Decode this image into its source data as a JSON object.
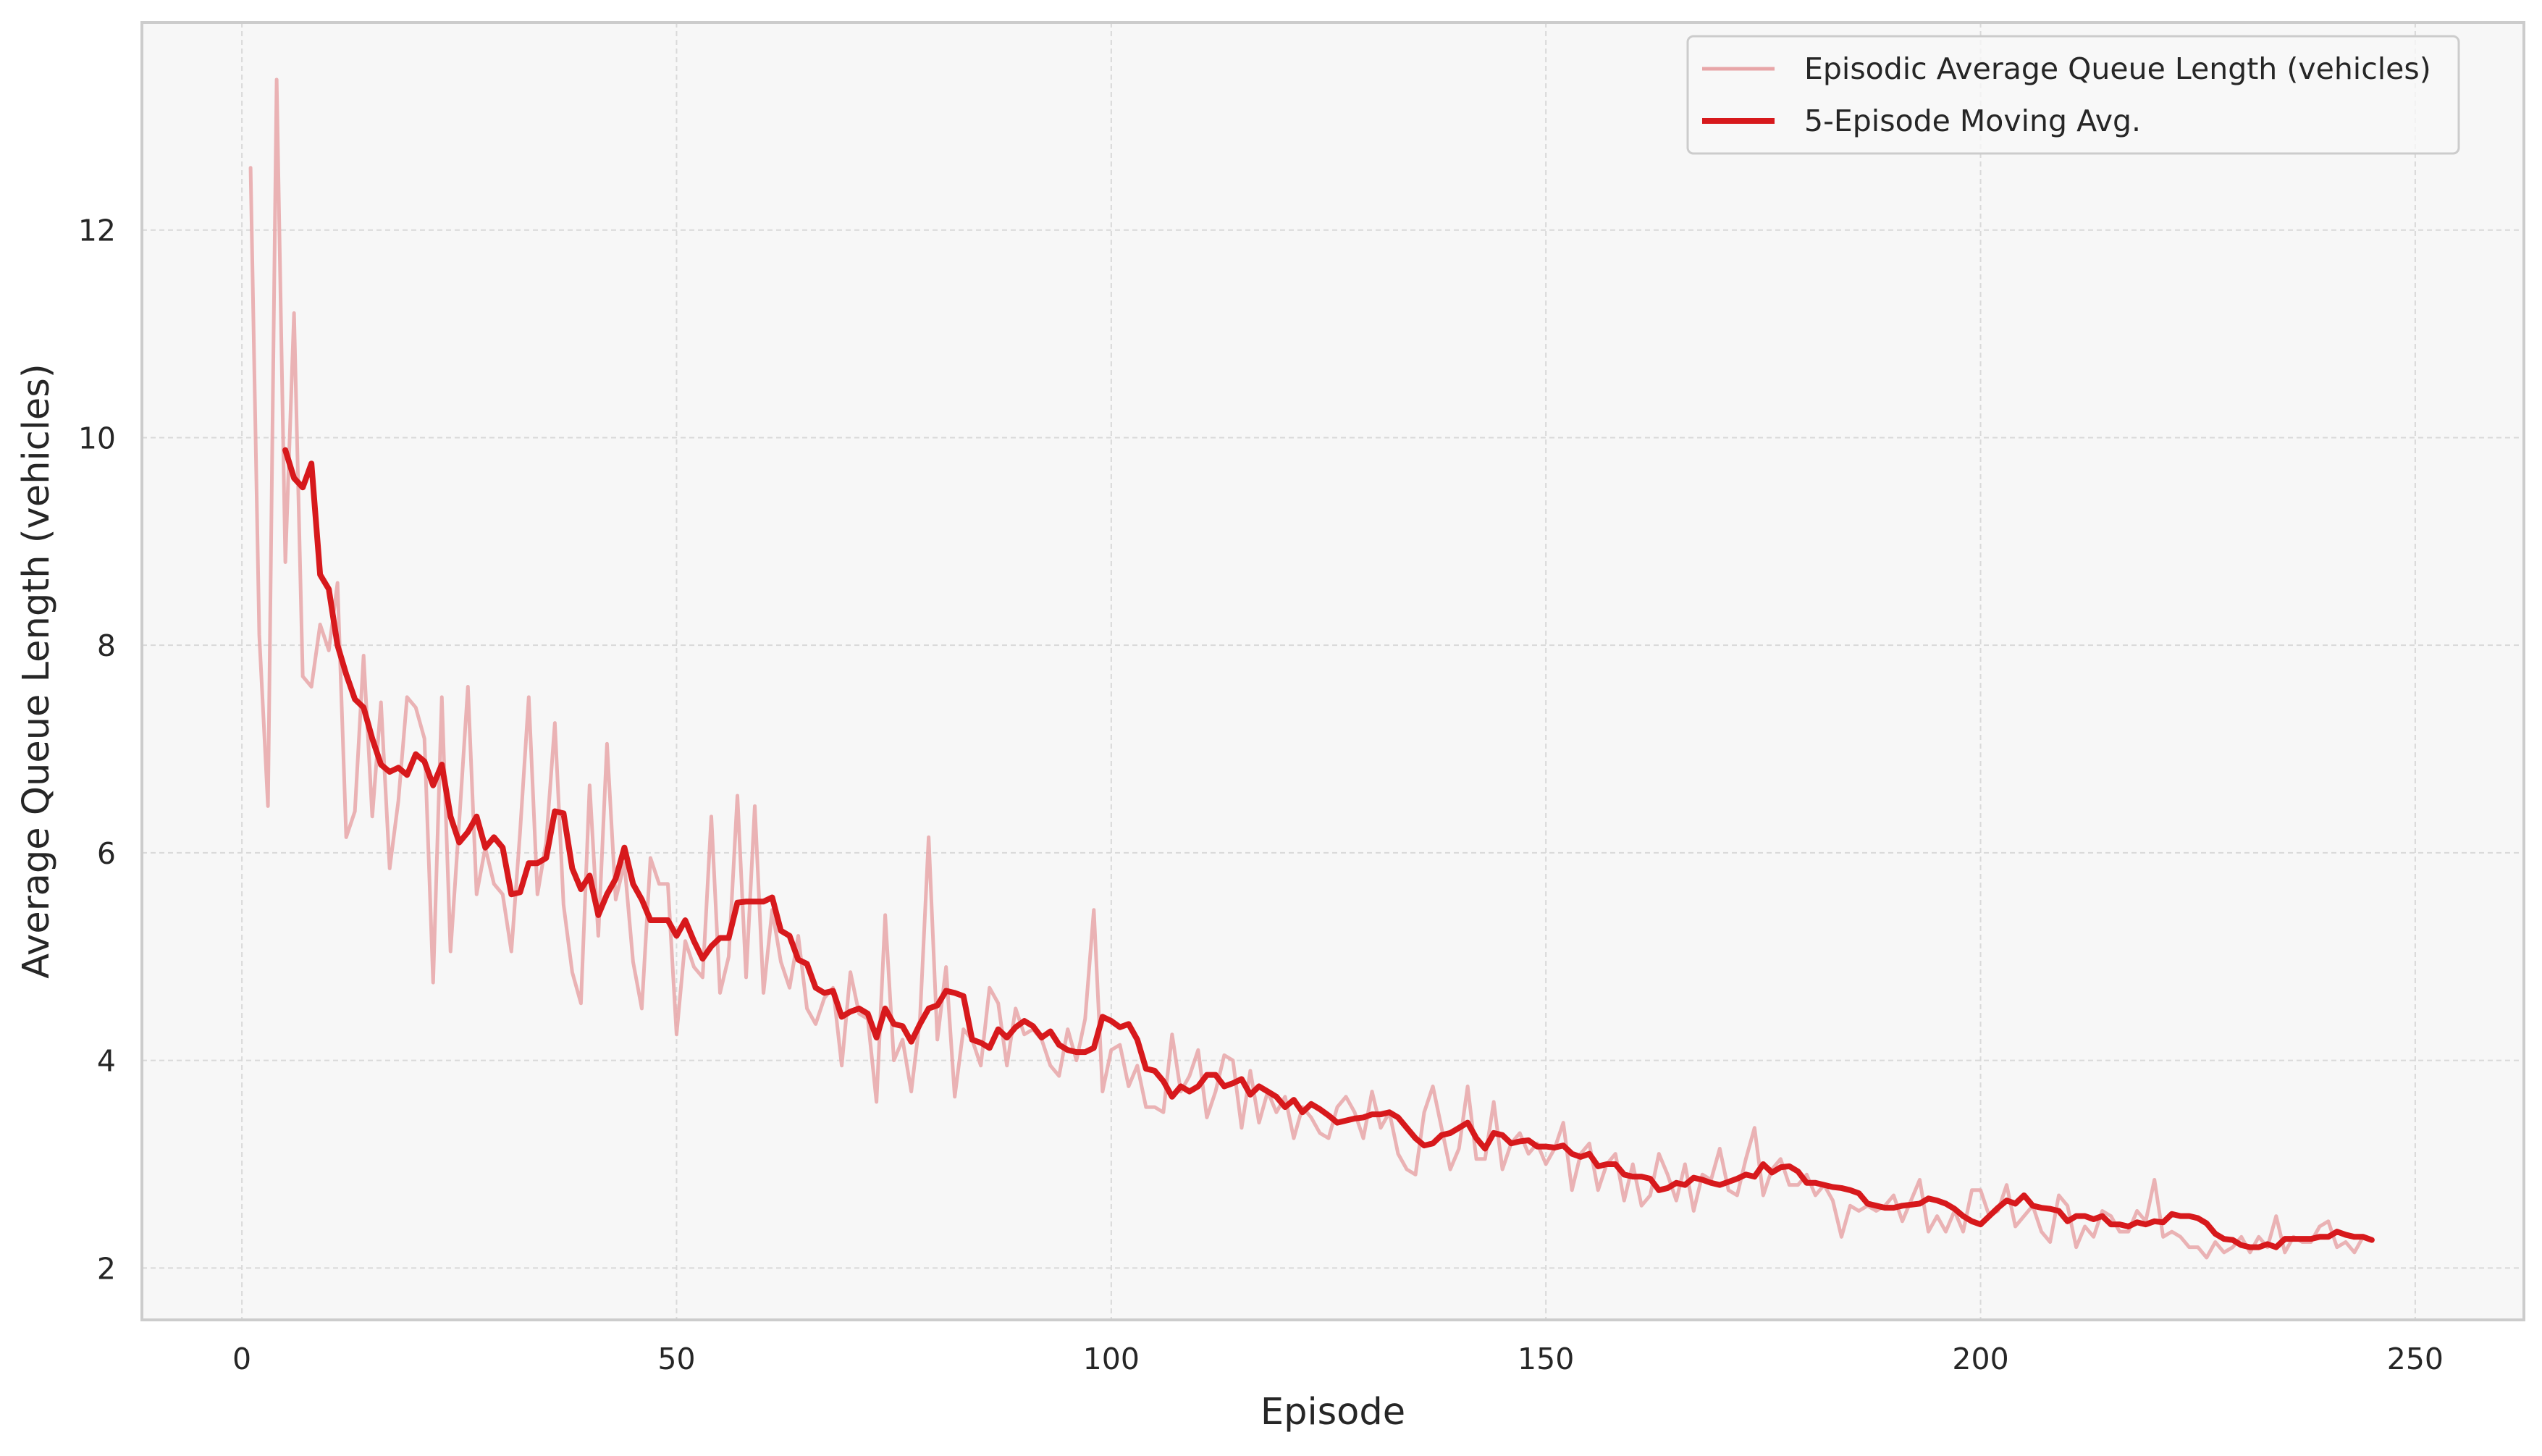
{
  "colors": {
    "background": "#ffffff",
    "plot_background": "#f7f7f7",
    "grid": "#d9d9d9",
    "spine": "#cccccc",
    "raw_line": "#e8a6a8",
    "moving_avg_line": "#d7191c"
  },
  "chart_data": {
    "type": "line",
    "title": "",
    "xlabel": "Episode",
    "ylabel": "Average Queue Length (vehicles)",
    "xlim": [
      -11.5,
      262.5
    ],
    "ylim": [
      1.5,
      14.0
    ],
    "xticks": [
      0,
      50,
      100,
      150,
      200,
      250
    ],
    "yticks": [
      2,
      4,
      6,
      8,
      10,
      12
    ],
    "grid": true,
    "legend": "upper-right",
    "series": [
      {
        "name": "Episodic Average Queue Length (vehicles)",
        "x_start": 1,
        "values": [
          12.6,
          8.1,
          6.45,
          13.45,
          8.8,
          11.2,
          7.7,
          7.6,
          8.2,
          7.95,
          8.6,
          6.15,
          6.4,
          7.9,
          6.35,
          7.45,
          5.85,
          6.5,
          7.5,
          7.4,
          7.1,
          4.75,
          7.5,
          5.05,
          6.3,
          7.6,
          5.6,
          6.05,
          5.7,
          5.6,
          5.05,
          6.2,
          7.5,
          5.6,
          6.1,
          7.25,
          5.5,
          4.85,
          4.55,
          6.65,
          5.2,
          7.05,
          5.55,
          5.9,
          4.95,
          4.5,
          5.95,
          5.7,
          5.7,
          4.25,
          5.15,
          4.9,
          4.8,
          6.35,
          4.65,
          5.0,
          6.55,
          4.8,
          6.45,
          4.65,
          5.45,
          4.95,
          4.7,
          5.2,
          4.5,
          4.35,
          4.6,
          4.7,
          3.95,
          4.85,
          4.45,
          4.4,
          3.6,
          5.4,
          4.0,
          4.2,
          3.7,
          4.4,
          6.15,
          4.2,
          4.9,
          3.65,
          4.3,
          4.2,
          3.95,
          4.7,
          4.55,
          3.95,
          4.5,
          4.25,
          4.3,
          4.2,
          3.95,
          3.85,
          4.3,
          4.0,
          4.4,
          5.45,
          3.7,
          4.1,
          4.15,
          3.75,
          3.95,
          3.55,
          3.55,
          3.5,
          4.25,
          3.7,
          3.85,
          4.1,
          3.45,
          3.7,
          4.05,
          4.0,
          3.35,
          3.9,
          3.4,
          3.7,
          3.5,
          3.65,
          3.25,
          3.55,
          3.45,
          3.3,
          3.25,
          3.55,
          3.65,
          3.5,
          3.25,
          3.7,
          3.35,
          3.5,
          3.1,
          2.95,
          2.9,
          3.5,
          3.75,
          3.35,
          2.95,
          3.15,
          3.75,
          3.05,
          3.05,
          3.6,
          2.95,
          3.2,
          3.3,
          3.1,
          3.2,
          3.0,
          3.15,
          3.4,
          2.75,
          3.1,
          3.2,
          2.75,
          3.0,
          3.1,
          2.65,
          3.0,
          2.6,
          2.7,
          3.1,
          2.9,
          2.65,
          3.0,
          2.55,
          2.9,
          2.85,
          3.15,
          2.75,
          2.7,
          3.05,
          3.35,
          2.7,
          2.95,
          3.05,
          2.8,
          2.8,
          2.9,
          2.7,
          2.8,
          2.65,
          2.3,
          2.6,
          2.55,
          2.6,
          2.55,
          2.6,
          2.7,
          2.45,
          2.65,
          2.85,
          2.35,
          2.5,
          2.35,
          2.55,
          2.35,
          2.75,
          2.75,
          2.5,
          2.55,
          2.8,
          2.4,
          2.5,
          2.6,
          2.35,
          2.25,
          2.7,
          2.6,
          2.2,
          2.4,
          2.3,
          2.55,
          2.5,
          2.35,
          2.35,
          2.55,
          2.45,
          2.85,
          2.3,
          2.35,
          2.3,
          2.2,
          2.2,
          2.1,
          2.25,
          2.15,
          2.2,
          2.3,
          2.15,
          2.3,
          2.2,
          2.5,
          2.15,
          2.3,
          2.25,
          2.25,
          2.4,
          2.45,
          2.2,
          2.25,
          2.15,
          2.3
        ]
      },
      {
        "name": "5-Episode Moving Avg.",
        "x_start": 5,
        "values": [
          9.88,
          9.61,
          9.52,
          9.75,
          8.68,
          8.54,
          8.0,
          7.72,
          7.48,
          7.4,
          7.1,
          6.85,
          6.78,
          6.82,
          6.75,
          6.95,
          6.88,
          6.65,
          6.85,
          6.35,
          6.1,
          6.2,
          6.35,
          6.05,
          6.15,
          6.05,
          5.6,
          5.62,
          5.9,
          5.9,
          5.95,
          6.4,
          6.38,
          5.85,
          5.65,
          5.78,
          5.4,
          5.6,
          5.75,
          6.05,
          5.7,
          5.55,
          5.35,
          5.35,
          5.35,
          5.2,
          5.35,
          5.15,
          4.98,
          5.1,
          5.18,
          5.18,
          5.52,
          5.53,
          5.53,
          5.53,
          5.57,
          5.25,
          5.2,
          4.97,
          4.93,
          4.7,
          4.65,
          4.67,
          4.42,
          4.47,
          4.5,
          4.45,
          4.22,
          4.5,
          4.35,
          4.33,
          4.18,
          4.35,
          4.5,
          4.53,
          4.67,
          4.65,
          4.62,
          4.2,
          4.17,
          4.12,
          4.3,
          4.22,
          4.32,
          4.38,
          4.33,
          4.22,
          4.28,
          4.15,
          4.1,
          4.08,
          4.08,
          4.12,
          4.42,
          4.38,
          4.32,
          4.35,
          4.2,
          3.92,
          3.9,
          3.8,
          3.65,
          3.75,
          3.7,
          3.75,
          3.86,
          3.86,
          3.75,
          3.78,
          3.82,
          3.67,
          3.75,
          3.7,
          3.65,
          3.55,
          3.62,
          3.5,
          3.58,
          3.53,
          3.47,
          3.4,
          3.42,
          3.44,
          3.45,
          3.48,
          3.48,
          3.5,
          3.45,
          3.35,
          3.25,
          3.18,
          3.2,
          3.28,
          3.3,
          3.35,
          3.4,
          3.25,
          3.15,
          3.3,
          3.28,
          3.2,
          3.22,
          3.23,
          3.17,
          3.17,
          3.16,
          3.18,
          3.1,
          3.07,
          3.1,
          2.98,
          3.0,
          3.0,
          2.9,
          2.88,
          2.88,
          2.86,
          2.75,
          2.77,
          2.82,
          2.8,
          2.87,
          2.85,
          2.82,
          2.8,
          2.83,
          2.86,
          2.9,
          2.88,
          3.0,
          2.92,
          2.97,
          2.98,
          2.93,
          2.82,
          2.82,
          2.8,
          2.78,
          2.77,
          2.75,
          2.72,
          2.62,
          2.6,
          2.58,
          2.58,
          2.6,
          2.61,
          2.62,
          2.67,
          2.65,
          2.62,
          2.57,
          2.5,
          2.45,
          2.42,
          2.5,
          2.58,
          2.65,
          2.62,
          2.7,
          2.6,
          2.58,
          2.57,
          2.55,
          2.45,
          2.5,
          2.5,
          2.47,
          2.5,
          2.42,
          2.42,
          2.4,
          2.44,
          2.42,
          2.45,
          2.44,
          2.52,
          2.5,
          2.5,
          2.48,
          2.43,
          2.33,
          2.28,
          2.27,
          2.22,
          2.2,
          2.2,
          2.23,
          2.2,
          2.28,
          2.28,
          2.28,
          2.28,
          2.3,
          2.3,
          2.35,
          2.32,
          2.3,
          2.3,
          2.27
        ]
      }
    ]
  }
}
